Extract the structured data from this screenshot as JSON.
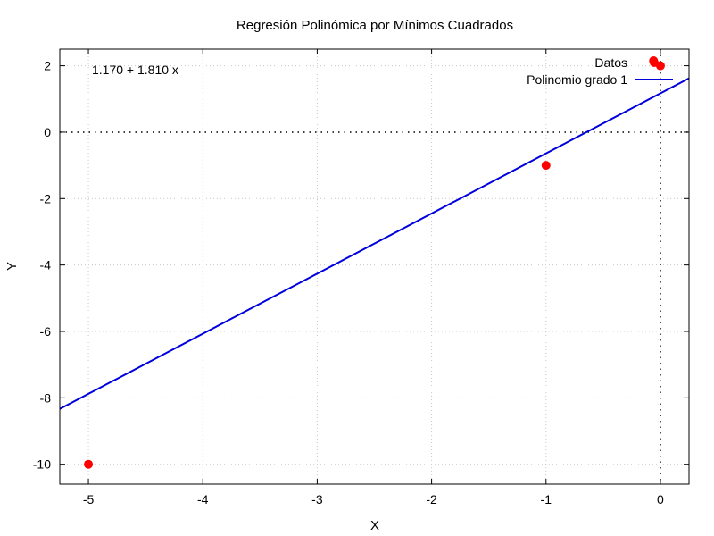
{
  "chart_data": {
    "type": "scatter",
    "title": "Regresión Polinómica por Mínimos Cuadrados",
    "xlabel": "X",
    "ylabel": "Y",
    "xlim": [
      -5.25,
      0.25
    ],
    "ylim": [
      -10.6,
      2.5
    ],
    "x_ticks": [
      -5,
      -4,
      -3,
      -2,
      -1,
      0
    ],
    "y_ticks": [
      -10,
      -8,
      -6,
      -4,
      -2,
      0,
      2
    ],
    "grid": true,
    "legend_position": "top-right",
    "annotation": "1.170 + 1.810 x",
    "series": [
      {
        "name": "Datos",
        "kind": "points",
        "color": "#ff0000",
        "x": [
          -5,
          -1,
          -0.06,
          0
        ],
        "y": [
          -10,
          -1,
          2.15,
          2
        ]
      },
      {
        "name": "Polinomio grado 1",
        "kind": "line",
        "color": "#0000dd",
        "intercept": 1.17,
        "slope": 1.81
      }
    ]
  }
}
